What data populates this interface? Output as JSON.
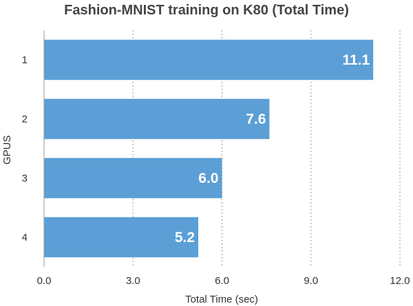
{
  "chart_data": {
    "type": "bar",
    "orientation": "horizontal",
    "title": "Fashion-MNIST training on K80 (Total Time)",
    "xlabel": "Total Time (sec)",
    "ylabel": "GPUS",
    "categories": [
      "1",
      "2",
      "3",
      "4"
    ],
    "values": [
      11.1,
      7.6,
      6.0,
      5.2
    ],
    "value_labels": [
      "11.1",
      "7.6",
      "6.0",
      "5.2"
    ],
    "xlim": [
      0,
      12
    ],
    "xticks": [
      "0.0",
      "3.0",
      "6.0",
      "9.0",
      "12.0"
    ],
    "xtick_values": [
      0,
      3,
      6,
      9,
      12
    ],
    "grid": true,
    "bar_color": "#5b9fd6"
  }
}
